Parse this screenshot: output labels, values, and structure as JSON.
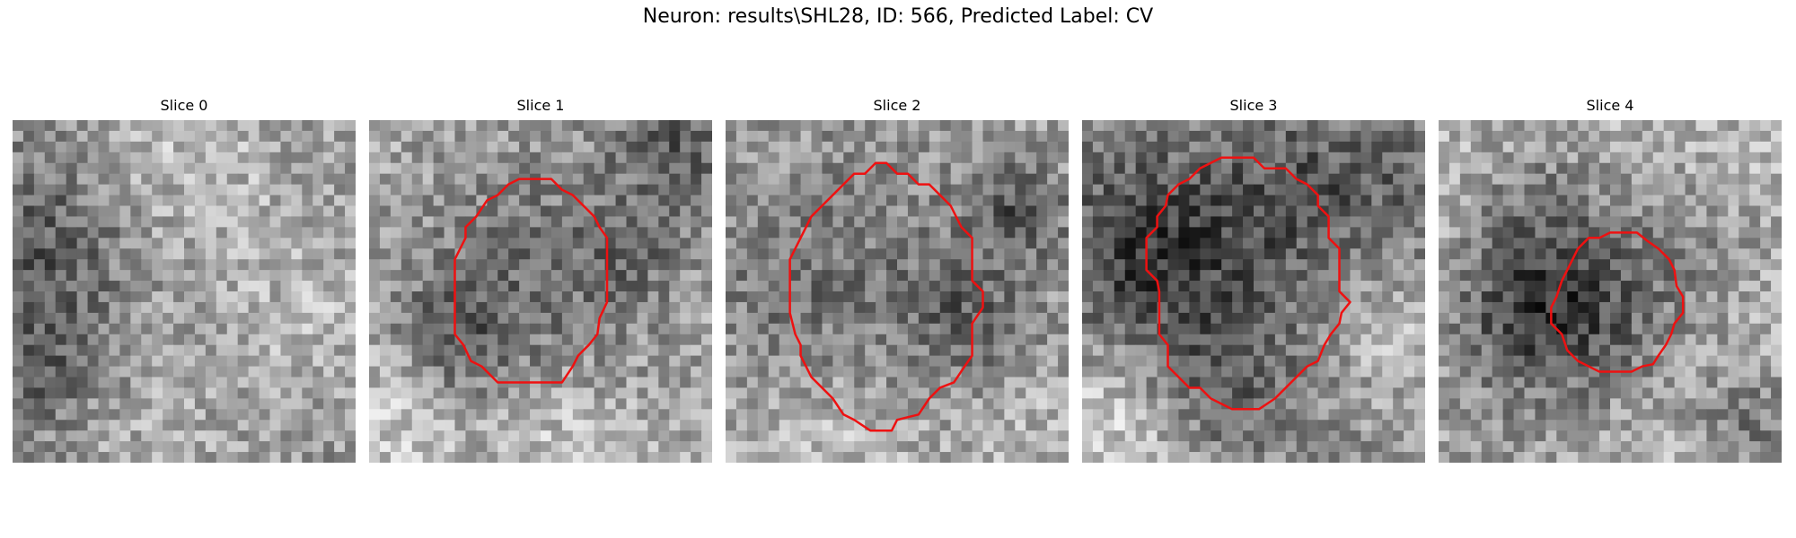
{
  "figure": {
    "title": "Neuron: results\\SHL28, ID: 566, Predicted Label: CV",
    "contour_color": "#ee1111"
  },
  "panels": [
    {
      "title": "Slice 0",
      "seed": 11,
      "has_contour": false
    },
    {
      "title": "Slice 1",
      "seed": 23,
      "has_contour": true
    },
    {
      "title": "Slice 2",
      "seed": 37,
      "has_contour": true
    },
    {
      "title": "Slice 3",
      "seed": 51,
      "has_contour": true
    },
    {
      "title": "Slice 4",
      "seed": 67,
      "has_contour": true
    }
  ]
}
